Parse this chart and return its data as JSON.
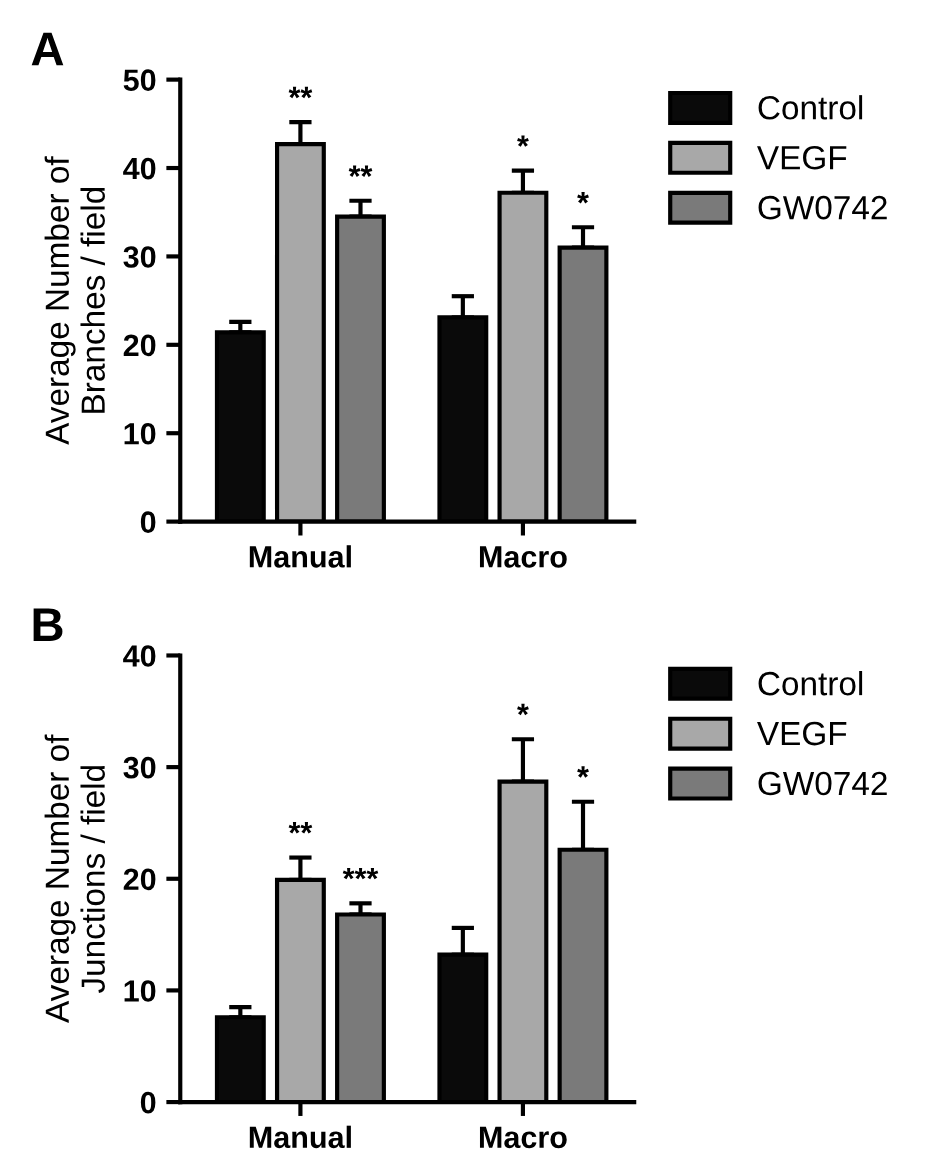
{
  "chart_data": [
    {
      "type": "bar",
      "title": "A",
      "ylabel": "Average Number of\nBranches / field",
      "categories": [
        "Manual",
        "Macro"
      ],
      "series": [
        {
          "name": "Control",
          "color": "#0a0a0a",
          "values": [
            21.4,
            23.1
          ],
          "errors": [
            1.2,
            2.4
          ]
        },
        {
          "name": "VEGF",
          "color": "#a8a8a8",
          "values": [
            42.7,
            37.2
          ],
          "errors": [
            2.5,
            2.5
          ]
        },
        {
          "name": "GW0742",
          "color": "#7a7a7a",
          "values": [
            34.5,
            31.0
          ],
          "errors": [
            1.8,
            2.3
          ]
        }
      ],
      "annotations": [
        "**",
        "**",
        "*",
        "*"
      ],
      "ylim": [
        0,
        50
      ],
      "yticks": [
        0,
        10,
        20,
        30,
        40,
        50
      ],
      "legend": "top right",
      "grid": false
    },
    {
      "type": "bar",
      "title": "B",
      "ylabel": "Average Number of\nJunctions / field",
      "categories": [
        "Manual",
        "Macro"
      ],
      "series": [
        {
          "name": "Control",
          "color": "#0a0a0a",
          "values": [
            7.6,
            13.2
          ],
          "errors": [
            0.9,
            2.4
          ]
        },
        {
          "name": "VEGF",
          "color": "#a8a8a8",
          "values": [
            19.9,
            28.7
          ],
          "errors": [
            2.0,
            3.8
          ]
        },
        {
          "name": "GW0742",
          "color": "#7a7a7a",
          "values": [
            16.8,
            22.6
          ],
          "errors": [
            1.0,
            4.3
          ]
        }
      ],
      "annotations": [
        "**",
        "***",
        "*",
        "*"
      ],
      "ylim": [
        0,
        40
      ],
      "yticks": [
        0,
        10,
        20,
        30,
        40
      ],
      "legend": "top right",
      "grid": false
    }
  ]
}
